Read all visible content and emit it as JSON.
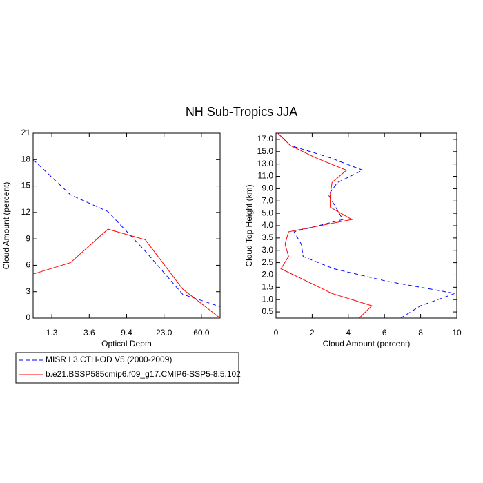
{
  "title": "NH Sub-Tropics JJA",
  "chart_data": [
    {
      "type": "line",
      "xlabel": "Optical Depth",
      "ylabel": "Cloud Amount (percent)",
      "x": [
        0,
        1,
        2,
        3,
        4,
        5
      ],
      "xlim": [
        0,
        5
      ],
      "xticks": [
        {
          "value": 0.5,
          "label": "1.3"
        },
        {
          "value": 1.5,
          "label": "3.6"
        },
        {
          "value": 2.5,
          "label": "9.4"
        },
        {
          "value": 3.5,
          "label": "23.0"
        },
        {
          "value": 4.5,
          "label": "60.0"
        }
      ],
      "ylim": [
        0,
        21
      ],
      "yticks": [
        0,
        3,
        6,
        9,
        12,
        15,
        18,
        21
      ],
      "series": [
        {
          "name": "MISR L3 CTH-OD V5 (2000-2009)",
          "color": "#0000ff",
          "dashed": true,
          "values": [
            18,
            14,
            12.1,
            7.6,
            2.7,
            1.3
          ]
        },
        {
          "name": "b.e21.BSSP585cmip6.f09_g17.CMIP6-SSP5-8.5.102",
          "color": "#ff0000",
          "dashed": false,
          "values": [
            5.0,
            6.3,
            10.1,
            8.9,
            3.3,
            0
          ]
        }
      ]
    },
    {
      "type": "line",
      "orientation": "horizontal",
      "xlabel": "Cloud Amount (percent)",
      "ylabel": "Cloud Top Height (km)",
      "xlim": [
        0,
        10
      ],
      "xticks": [
        0,
        2,
        4,
        6,
        8,
        10
      ],
      "y": [
        0,
        1,
        2,
        3,
        4,
        5,
        6,
        7,
        8,
        9,
        10,
        11,
        12,
        13,
        14,
        15
      ],
      "ylim": [
        0,
        15
      ],
      "yticks": [
        0.5,
        {
          "value": 1.5,
          "label": "1.0"
        },
        {
          "value": 2.5,
          "label": "1.5"
        },
        {
          "value": 3.5,
          "label": "2.0"
        },
        {
          "value": 4.5,
          "label": "2.5"
        },
        {
          "value": 5.5,
          "label": "3.0"
        },
        {
          "value": 6.5,
          "label": "3.5"
        },
        {
          "value": 7.5,
          "label": "4.0"
        },
        {
          "value": 8.5,
          "label": "5.0"
        },
        {
          "value": 9.5,
          "label": "7.0"
        },
        {
          "value": 10.5,
          "label": "9.0"
        },
        {
          "value": 11.5,
          "label": "11.0"
        },
        {
          "value": 12.5,
          "label": "13.0"
        },
        {
          "value": 13.5,
          "label": "15.0"
        },
        {
          "value": 14.5,
          "label": "17.0"
        }
      ],
      "series": [
        {
          "name": "MISR L3 CTH-OD V5 (2000-2009)",
          "color": "#0000ff",
          "dashed": true,
          "values": [
            6.9,
            8.0,
            9.9,
            6.1,
            3.2,
            1.5,
            1.4,
            1.0,
            3.7,
            3.3,
            2.9,
            3.4,
            4.8,
            3.0,
            0.8,
            0.1
          ]
        },
        {
          "name": "b.e21.BSSP585cmip6.f09_g17.CMIP6-SSP5-8.5.102",
          "color": "#ff0000",
          "dashed": false,
          "values": [
            4.6,
            5.3,
            3.1,
            1.7,
            0.27,
            0.7,
            0.5,
            0.7,
            4.2,
            3.0,
            3.0,
            3.1,
            3.9,
            2.2,
            0.8,
            0.1
          ]
        }
      ]
    }
  ]
}
